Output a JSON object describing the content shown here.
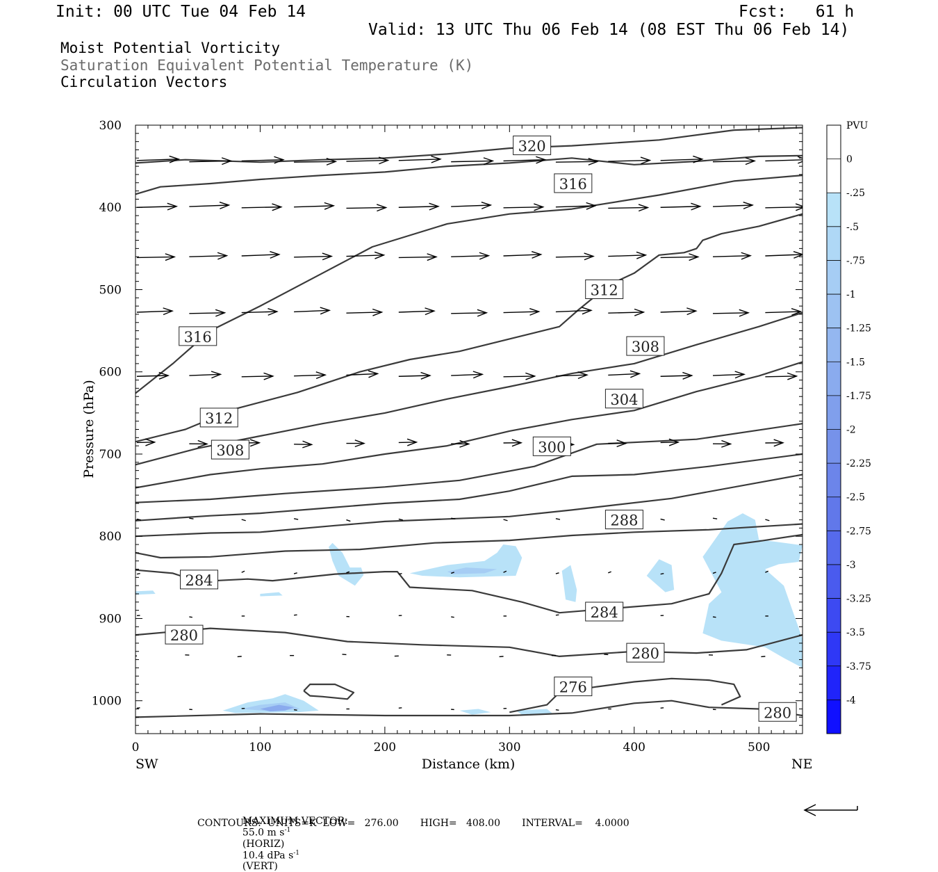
{
  "header": {
    "init": "Init: 00 UTC Tue 04 Feb 14",
    "fcst": "Fcst:   61 h",
    "valid": "Valid: 13 UTC Thu 06 Feb 14 (08 EST Thu 06 Feb 14)",
    "field1": "Moist Potential Vorticity",
    "field2": "Saturation Equivalent Potential Temperature (K)",
    "field3": "Circulation Vectors"
  },
  "footer": {
    "max_vector_label": "MAXIMUM VECTOR:",
    "max_vector_horiz": "55.0 m s",
    "horiz_unit": "(HORIZ)",
    "max_vector_vert": "10.4 dPa s",
    "vert_unit": "(VERT)",
    "exp": "-1",
    "contours": "CONTOURS:  UNITS=K  LOW=   276.00       HIGH=   408.00       INTERVAL=    4.0000"
  },
  "colors": {
    "contour": "#3a3a3a",
    "vector": "#000000",
    "pv_light": "#b8e2f8",
    "pv_dark": "#1010ff"
  },
  "chart_data": {
    "type": "cross-section",
    "xlabel": "Distance (km)",
    "ylabel": "Pressure (hPa)",
    "x_left_label": "SW",
    "x_right_label": "NE",
    "xlim": [
      0,
      535
    ],
    "ylim": [
      300,
      1040
    ],
    "x_ticks": [
      0,
      100,
      200,
      300,
      400,
      500
    ],
    "y_ticks": [
      300,
      400,
      500,
      600,
      700,
      800,
      900,
      1000
    ],
    "colorbar": {
      "title": "PVU",
      "labels": [
        "0",
        "-.25",
        "-.5",
        "-.75",
        "-1",
        "-1.25",
        "-1.5",
        "-1.75",
        "-2",
        "-2.25",
        "-2.5",
        "-2.75",
        "-3",
        "-3.25",
        "-3.5",
        "-3.75",
        "-4"
      ],
      "colors": [
        "#ffffff",
        "#ffffff",
        "#b8e2f8",
        "#afd8f6",
        "#a6cdf4",
        "#9dc2f2",
        "#94b7f0",
        "#8aabee",
        "#809fec",
        "#7692ea",
        "#6c85ea",
        "#6178ea",
        "#566aec",
        "#4a5bee",
        "#3d4af2",
        "#2f38f6",
        "#2024fa",
        "#1010ff"
      ]
    },
    "contour_labels": [
      {
        "text": "320",
        "x": 318,
        "p": 325
      },
      {
        "text": "316",
        "x": 351,
        "p": 371
      },
      {
        "text": "316",
        "x": 50,
        "p": 557
      },
      {
        "text": "312",
        "x": 376,
        "p": 500
      },
      {
        "text": "312",
        "x": 67,
        "p": 656
      },
      {
        "text": "308",
        "x": 409,
        "p": 569
      },
      {
        "text": "308",
        "x": 76,
        "p": 695
      },
      {
        "text": "304",
        "x": 392,
        "p": 633
      },
      {
        "text": "300",
        "x": 334,
        "p": 691
      },
      {
        "text": "288",
        "x": 392,
        "p": 780
      },
      {
        "text": "284",
        "x": 51,
        "p": 853
      },
      {
        "text": "284",
        "x": 376,
        "p": 892
      },
      {
        "text": "280",
        "x": 39,
        "p": 920
      },
      {
        "text": "280",
        "x": 409,
        "p": 942
      },
      {
        "text": "276",
        "x": 351,
        "p": 983
      },
      {
        "text": "280",
        "x": 515,
        "p": 1014
      }
    ],
    "contours": [
      [
        [
          0,
          346
        ],
        [
          40,
          342
        ],
        [
          100,
          345
        ],
        [
          150,
          342
        ],
        [
          200,
          340
        ],
        [
          250,
          335
        ],
        [
          300,
          328
        ],
        [
          350,
          325
        ],
        [
          420,
          318
        ],
        [
          480,
          306
        ],
        [
          535,
          303
        ]
      ],
      [
        [
          0,
          384
        ],
        [
          20,
          375
        ],
        [
          60,
          371
        ],
        [
          100,
          366
        ],
        [
          150,
          361
        ],
        [
          200,
          357
        ],
        [
          250,
          350
        ],
        [
          300,
          346
        ],
        [
          350,
          340
        ],
        [
          400,
          348
        ],
        [
          450,
          344
        ],
        [
          500,
          338
        ],
        [
          535,
          337
        ]
      ],
      [
        [
          0,
          626
        ],
        [
          30,
          590
        ],
        [
          60,
          550
        ],
        [
          100,
          520
        ],
        [
          150,
          480
        ],
        [
          190,
          448
        ],
        [
          250,
          420
        ],
        [
          300,
          408
        ],
        [
          350,
          402
        ],
        [
          420,
          385
        ],
        [
          480,
          368
        ],
        [
          535,
          361
        ]
      ],
      [
        [
          0,
          685
        ],
        [
          40,
          670
        ],
        [
          80,
          645
        ],
        [
          130,
          625
        ],
        [
          180,
          600
        ],
        [
          220,
          585
        ],
        [
          260,
          575
        ],
        [
          300,
          560
        ],
        [
          340,
          545
        ],
        [
          355,
          525
        ],
        [
          380,
          494
        ],
        [
          400,
          480
        ],
        [
          420,
          458
        ],
        [
          440,
          455
        ],
        [
          450,
          450
        ],
        [
          455,
          440
        ],
        [
          470,
          432
        ],
        [
          500,
          423
        ],
        [
          535,
          408
        ]
      ],
      [
        [
          0,
          713
        ],
        [
          50,
          693
        ],
        [
          100,
          678
        ],
        [
          150,
          663
        ],
        [
          200,
          650
        ],
        [
          250,
          633
        ],
        [
          300,
          618
        ],
        [
          350,
          602
        ],
        [
          400,
          590
        ],
        [
          450,
          567
        ],
        [
          500,
          545
        ],
        [
          535,
          528
        ]
      ],
      [
        [
          0,
          741
        ],
        [
          60,
          725
        ],
        [
          100,
          718
        ],
        [
          150,
          712
        ],
        [
          200,
          700
        ],
        [
          250,
          690
        ],
        [
          300,
          672
        ],
        [
          350,
          658
        ],
        [
          400,
          647
        ],
        [
          450,
          624
        ],
        [
          500,
          605
        ],
        [
          535,
          588
        ]
      ],
      [
        [
          0,
          759
        ],
        [
          60,
          755
        ],
        [
          120,
          748
        ],
        [
          200,
          740
        ],
        [
          260,
          732
        ],
        [
          320,
          715
        ],
        [
          370,
          688
        ],
        [
          450,
          682
        ],
        [
          535,
          663
        ]
      ],
      [
        [
          0,
          781
        ],
        [
          60,
          775
        ],
        [
          100,
          772
        ],
        [
          150,
          766
        ],
        [
          200,
          760
        ],
        [
          260,
          755
        ],
        [
          300,
          745
        ],
        [
          350,
          727
        ],
        [
          400,
          725
        ],
        [
          460,
          715
        ],
        [
          535,
          700
        ]
      ],
      [
        [
          0,
          800
        ],
        [
          60,
          796
        ],
        [
          100,
          795
        ],
        [
          160,
          787
        ],
        [
          200,
          782
        ],
        [
          300,
          776
        ],
        [
          350,
          768
        ],
        [
          430,
          754
        ],
        [
          535,
          725
        ]
      ],
      [
        [
          0,
          820
        ],
        [
          20,
          826
        ],
        [
          60,
          825
        ],
        [
          120,
          818
        ],
        [
          180,
          816
        ],
        [
          240,
          808
        ],
        [
          300,
          805
        ],
        [
          350,
          799
        ],
        [
          400,
          795
        ],
        [
          460,
          792
        ],
        [
          535,
          785
        ]
      ],
      [
        [
          0,
          841
        ],
        [
          30,
          845
        ],
        [
          50,
          855
        ],
        [
          90,
          852
        ],
        [
          110,
          854
        ],
        [
          160,
          846
        ],
        [
          200,
          843
        ],
        [
          210,
          843
        ],
        [
          220,
          862
        ],
        [
          270,
          866
        ],
        [
          310,
          880
        ],
        [
          340,
          893
        ],
        [
          380,
          888
        ],
        [
          430,
          882
        ],
        [
          460,
          870
        ],
        [
          470,
          845
        ],
        [
          480,
          810
        ],
        [
          500,
          806
        ],
        [
          535,
          798
        ]
      ],
      [
        [
          0,
          920
        ],
        [
          60,
          912
        ],
        [
          120,
          917
        ],
        [
          170,
          928
        ],
        [
          230,
          932
        ],
        [
          300,
          935
        ],
        [
          340,
          946
        ],
        [
          400,
          940
        ],
        [
          450,
          942
        ],
        [
          490,
          938
        ],
        [
          535,
          920
        ]
      ],
      [
        [
          135,
          988
        ],
        [
          140,
          980
        ],
        [
          160,
          980
        ],
        [
          175,
          990
        ],
        [
          170,
          998
        ],
        [
          150,
          995
        ],
        [
          140,
          994
        ],
        [
          135,
          988
        ]
      ],
      [
        [
          300,
          1014
        ],
        [
          330,
          1005
        ],
        [
          340,
          990
        ],
        [
          370,
          983
        ],
        [
          400,
          977
        ],
        [
          430,
          973
        ],
        [
          460,
          975
        ],
        [
          480,
          980
        ],
        [
          485,
          995
        ],
        [
          470,
          1005
        ]
      ],
      [
        [
          0,
          1020
        ],
        [
          100,
          1016
        ],
        [
          200,
          1018
        ],
        [
          300,
          1018
        ],
        [
          350,
          1015
        ],
        [
          400,
          1003
        ],
        [
          430,
          1000
        ],
        [
          460,
          1008
        ],
        [
          500,
          1010
        ],
        [
          535,
          1018
        ]
      ]
    ],
    "pv_regions": [
      {
        "level": 1,
        "pts": [
          [
            155,
            813
          ],
          [
            158,
            808
          ],
          [
            166,
            820
          ],
          [
            172,
            838
          ],
          [
            181,
            838
          ],
          [
            183,
            847
          ],
          [
            176,
            860
          ],
          [
            163,
            848
          ],
          [
            158,
            830
          ]
        ]
      },
      {
        "level": 1,
        "pts": [
          [
            220,
            845
          ],
          [
            250,
            835
          ],
          [
            280,
            830
          ],
          [
            290,
            820
          ],
          [
            295,
            810
          ],
          [
            305,
            812
          ],
          [
            310,
            826
          ],
          [
            305,
            848
          ],
          [
            260,
            850
          ],
          [
            230,
            848
          ]
        ]
      },
      {
        "level": 3,
        "pts": [
          [
            250,
            843
          ],
          [
            265,
            838
          ],
          [
            290,
            840
          ],
          [
            280,
            845
          ],
          [
            255,
            846
          ]
        ]
      },
      {
        "level": 1,
        "pts": [
          [
            342,
            842
          ],
          [
            349,
            835
          ],
          [
            354,
            865
          ],
          [
            353,
            880
          ],
          [
            345,
            877
          ]
        ]
      },
      {
        "level": 1,
        "pts": [
          [
            410,
            848
          ],
          [
            420,
            828
          ],
          [
            430,
            835
          ],
          [
            432,
            865
          ],
          [
            425,
            868
          ]
        ]
      },
      {
        "level": 1,
        "pts": [
          [
            455,
            825
          ],
          [
            475,
            782
          ],
          [
            487,
            772
          ],
          [
            497,
            780
          ],
          [
            500,
            804
          ],
          [
            535,
            811
          ],
          [
            532,
            831
          ],
          [
            516,
            834
          ],
          [
            505,
            840
          ],
          [
            520,
            860
          ],
          [
            535,
            925
          ],
          [
            535,
            960
          ],
          [
            520,
            948
          ],
          [
            505,
            935
          ],
          [
            470,
            927
          ],
          [
            455,
            918
          ],
          [
            460,
            882
          ],
          [
            470,
            868
          ]
        ]
      },
      {
        "level": 1,
        "pts": [
          [
            70,
            1012
          ],
          [
            90,
            1002
          ],
          [
            110,
            997
          ],
          [
            120,
            992
          ],
          [
            135,
            1000
          ],
          [
            147,
            1012
          ],
          [
            130,
            1014
          ],
          [
            80,
            1015
          ]
        ]
      },
      {
        "level": 3,
        "pts": [
          [
            85,
            1010
          ],
          [
            100,
            1005
          ],
          [
            120,
            1002
          ],
          [
            132,
            1010
          ],
          [
            110,
            1013
          ]
        ]
      },
      {
        "level": 6,
        "pts": [
          [
            100,
            1010
          ],
          [
            115,
            1005
          ],
          [
            127,
            1008
          ],
          [
            120,
            1012
          ],
          [
            108,
            1013
          ]
        ]
      },
      {
        "level": 1,
        "pts": [
          [
            260,
            1012
          ],
          [
            275,
            1010
          ],
          [
            285,
            1014
          ],
          [
            270,
            1017
          ]
        ]
      },
      {
        "level": 1,
        "pts": [
          [
            305,
            1012
          ],
          [
            330,
            1010
          ],
          [
            335,
            1016
          ],
          [
            310,
            1017
          ]
        ]
      },
      {
        "level": 1,
        "pts": [
          [
            0,
            867
          ],
          [
            14,
            866
          ],
          [
            16,
            870
          ],
          [
            0,
            871
          ]
        ]
      },
      {
        "level": 1,
        "pts": [
          [
            100,
            870
          ],
          [
            115,
            868
          ],
          [
            118,
            872
          ],
          [
            100,
            873
          ]
        ]
      }
    ],
    "vector_rows": [
      {
        "p": 344,
        "dx": 40,
        "dy": -1
      },
      {
        "p": 400,
        "dx": 38,
        "dy": -1
      },
      {
        "p": 460,
        "dx": 36,
        "dy": -1
      },
      {
        "p": 528,
        "dx": 34,
        "dy": -1
      },
      {
        "p": 605,
        "dx": 30,
        "dy": -1
      },
      {
        "p": 687,
        "dx": 17,
        "dy": 0
      },
      {
        "p": 779,
        "dx": 4,
        "dy": 1
      },
      {
        "p": 845,
        "dx": 3,
        "dy": -1
      },
      {
        "p": 897,
        "dx": 3,
        "dy": 0
      },
      {
        "p": 945,
        "dx": -4,
        "dy": 0
      },
      {
        "p": 1010,
        "dx": 3,
        "dy": 0
      }
    ]
  }
}
